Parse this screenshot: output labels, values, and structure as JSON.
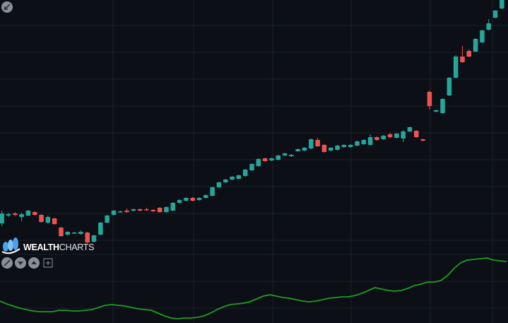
{
  "chart_data": [
    {
      "type": "candlestick",
      "ylim": [
        0,
        360
      ],
      "up_color": "#26a69a",
      "down_color": "#ef5350",
      "open": [
        44,
        55,
        58,
        53,
        55,
        60,
        56,
        45,
        51,
        38,
        28,
        30,
        29,
        31,
        18,
        28,
        45,
        56,
        60,
        62,
        62,
        64,
        64,
        63,
        66,
        60,
        62,
        73,
        76,
        80,
        77,
        80,
        83,
        95,
        102,
        106,
        107,
        111,
        119,
        125,
        136,
        133,
        134,
        140,
        139,
        146,
        147,
        150,
        162,
        155,
        147,
        148,
        152,
        152,
        154,
        156,
        155,
        166,
        163,
        170,
        165,
        164,
        174,
        175,
        163,
        230,
        202,
        200,
        225,
        250,
        280,
        288,
        287,
        300,
        318,
        335,
        348
      ],
      "high": [
        62,
        59,
        60,
        59,
        63,
        61,
        57,
        55,
        52,
        39,
        33,
        32,
        34,
        32,
        28,
        46,
        56,
        63,
        62,
        65,
        65,
        65,
        66,
        64,
        67,
        68,
        74,
        78,
        81,
        81,
        81,
        85,
        96,
        103,
        107,
        111,
        113,
        121,
        129,
        136,
        137,
        137,
        141,
        144,
        142,
        150,
        152,
        164,
        165,
        156,
        152,
        155,
        156,
        156,
        161,
        163,
        170,
        167,
        169,
        172,
        172,
        176,
        181,
        176,
        164,
        232,
        205,
        221,
        251,
        282,
        295,
        290,
        306,
        318,
        333,
        346,
        360
      ],
      "low": [
        40,
        53,
        54,
        47,
        54,
        55,
        45,
        43,
        42,
        25,
        27,
        29,
        28,
        16,
        17,
        27,
        44,
        55,
        59,
        59,
        61,
        61,
        62,
        60,
        59,
        59,
        61,
        72,
        75,
        75,
        76,
        79,
        82,
        94,
        101,
        105,
        106,
        110,
        118,
        124,
        131,
        132,
        133,
        139,
        138,
        145,
        146,
        149,
        152,
        144,
        146,
        147,
        151,
        151,
        153,
        155,
        154,
        161,
        162,
        164,
        164,
        159,
        173,
        165,
        160,
        205,
        201,
        199,
        224,
        249,
        271,
        279,
        286,
        299,
        317,
        334,
        347
      ],
      "close": [
        58,
        57,
        56,
        57,
        62,
        56,
        46,
        53,
        43,
        26,
        32,
        31,
        32,
        17,
        27,
        45,
        55,
        62,
        61,
        60,
        64,
        62,
        63,
        61,
        60,
        67,
        73,
        77,
        80,
        76,
        80,
        84,
        95,
        102,
        106,
        110,
        112,
        120,
        128,
        135,
        132,
        136,
        140,
        143,
        141,
        149,
        151,
        163,
        153,
        145,
        151,
        154,
        155,
        155,
        160,
        162,
        166,
        162,
        168,
        166,
        171,
        174,
        180,
        166,
        161,
        210,
        204,
        220,
        250,
        280,
        272,
        280,
        305,
        317,
        327,
        345,
        360
      ]
    },
    {
      "type": "line",
      "ylim": [
        0,
        100
      ],
      "color": "#1f9d1f",
      "values": [
        31,
        27,
        24,
        21,
        19,
        17,
        16,
        16,
        16,
        18,
        18,
        17,
        17,
        18,
        19,
        22,
        25,
        26,
        25,
        24,
        22,
        20,
        19,
        18,
        14,
        10,
        7,
        6,
        7,
        7,
        8,
        10,
        14,
        19,
        23,
        26,
        27,
        28,
        30,
        34,
        38,
        40,
        38,
        36,
        35,
        33,
        31,
        30,
        31,
        33,
        35,
        36,
        37,
        37,
        39,
        42,
        46,
        50,
        48,
        46,
        45,
        46,
        49,
        53,
        55,
        58,
        58,
        60,
        67,
        77,
        85,
        89,
        90,
        91,
        92,
        89,
        87
      ]
    }
  ],
  "logo": {
    "bold": "WEALTH",
    "light": "CHARTS"
  }
}
